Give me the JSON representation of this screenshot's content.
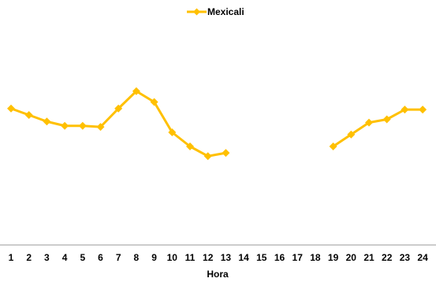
{
  "chart_data": {
    "type": "line",
    "title": "",
    "xlabel": "Hora",
    "ylabel": "",
    "categories": [
      "1",
      "2",
      "3",
      "4",
      "5",
      "6",
      "7",
      "8",
      "9",
      "10",
      "11",
      "12",
      "13",
      "14",
      "15",
      "16",
      "17",
      "18",
      "19",
      "20",
      "21",
      "22",
      "23",
      "24"
    ],
    "ylim": [
      0,
      100
    ],
    "series": [
      {
        "name": "Mexicali",
        "color": "#FFC000",
        "marker": "diamond",
        "values": [
          63,
          60,
          57,
          55,
          55,
          54.5,
          63,
          71,
          66,
          52,
          45.5,
          41,
          42.5,
          null,
          null,
          null,
          null,
          null,
          45.5,
          51,
          56.5,
          58,
          62.5,
          62.5
        ]
      }
    ],
    "legend_position": "top",
    "grid": false
  }
}
